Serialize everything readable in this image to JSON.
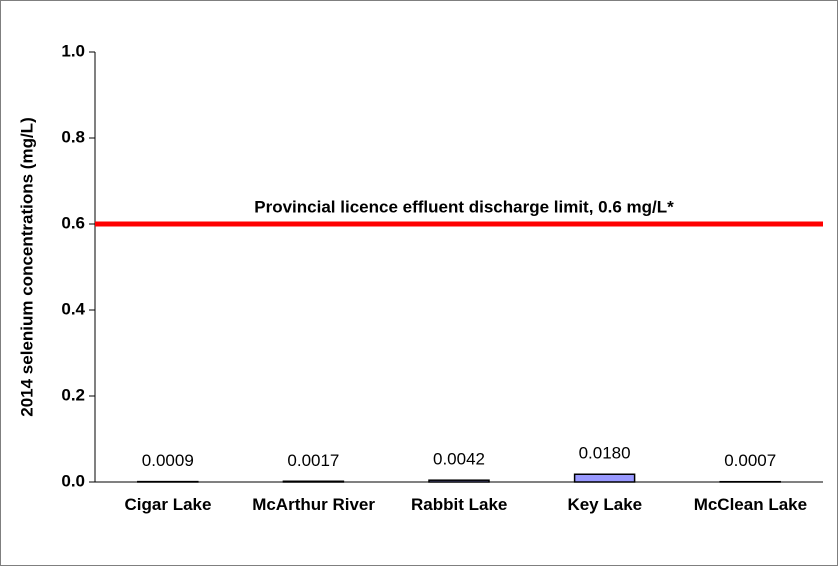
{
  "chart_data": {
    "type": "bar",
    "y_label": "2014 selenium concentrations (mg/L)",
    "categories": [
      "Cigar Lake",
      "McArthur River",
      "Rabbit Lake",
      "Key Lake",
      "McClean Lake"
    ],
    "values": [
      0.0009,
      0.0017,
      0.0042,
      0.018,
      0.0007
    ],
    "value_labels": [
      "0.0009",
      "0.0017",
      "0.0042",
      "0.0180",
      "0.0007"
    ],
    "color": "#9999ff",
    "ylim": [
      0,
      1
    ],
    "yticks": [
      {
        "value": 0,
        "label": "0.0"
      },
      {
        "value": 0.2,
        "label": "0.2"
      },
      {
        "value": 0.4,
        "label": "0.4"
      },
      {
        "value": 0.6,
        "label": "0.6"
      },
      {
        "value": 0.8,
        "label": "0.8"
      },
      {
        "value": 1,
        "label": "1.0"
      }
    ],
    "reference_line": {
      "value": 0.6,
      "label": "Provincial licence effluent discharge limit, 0.6 mg/L*",
      "color": "#ff0000"
    }
  }
}
